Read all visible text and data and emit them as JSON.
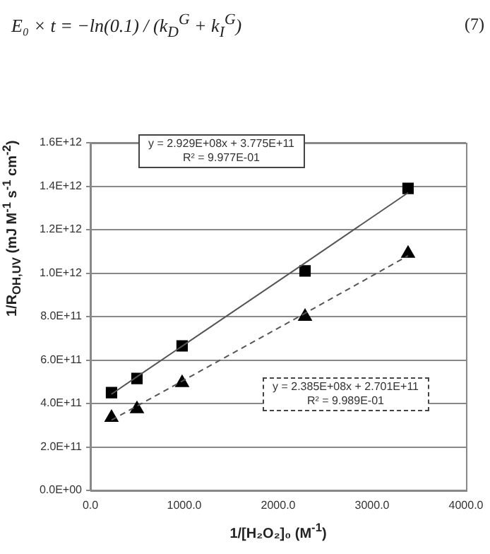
{
  "chart_data": {
    "type": "scatter",
    "annotations": [
      "E₀ × t = −ln(0.1) / (k$_{D}$$^{G}$ + k$_{I}$$^{G}$)",
      "(7)",
      "y = 2.929E+08x + 3.775E+11",
      "R² = 9.977E-01",
      "y = 2.385E+08x + 2.701E+11",
      "R² = 9.989E-01"
    ],
    "xlabel": "1/[H₂O₂]₀ (M$^{-1}$)",
    "ylabel": "1/R$_{OH,UV}$ (mJ M$^{-1}$ s$^{-1}$ cm$^{-2}$)",
    "x": [
      225,
      496,
      977,
      2286,
      3383
    ],
    "series": [
      {
        "type": "scatter",
        "color": "#000000",
        "marker": "square",
        "values": [
          450000000000,
          515000000000,
          665000000000,
          1010000000000,
          1390000000000
        ]
      },
      {
        "type": "scatter",
        "color": "#000000",
        "marker": "triangle",
        "values": [
          335000000000,
          375000000000,
          495000000000,
          800000000000,
          1090000000000
        ]
      },
      {
        "type": "line",
        "color": "#555555",
        "marker": "none",
        "line_style": "solid",
        "values": [
          443000000000,
          523000000000,
          664000000000,
          1047000000000,
          1370000000000
        ]
      },
      {
        "type": "line",
        "color": "#555555",
        "marker": "none",
        "line_style": "dashed",
        "values": [
          324000000000,
          388000000000,
          503000000000,
          815000000000,
          1080000000000
        ]
      }
    ],
    "xlim": [
      0,
      4000
    ],
    "xticks": [
      {
        "value": 0,
        "label": "0.0"
      },
      {
        "value": 1000,
        "label": "1000.0"
      },
      {
        "value": 2000,
        "label": "2000.0"
      },
      {
        "value": 3000,
        "label": "3000.0"
      },
      {
        "value": 4000,
        "label": "4000.0"
      }
    ],
    "ylim": [
      0,
      1600000000000
    ],
    "yticks": [
      {
        "value": 0,
        "label": "0.0E+00"
      },
      {
        "value": 200000000000,
        "label": "2.0E+11"
      },
      {
        "value": 400000000000,
        "label": "4.0E+11"
      },
      {
        "value": 600000000000,
        "label": "6.0E+11"
      },
      {
        "value": 800000000000,
        "label": "8.0E+11"
      },
      {
        "value": 1000000000000,
        "label": "1.0E+12"
      },
      {
        "value": 1200000000000,
        "label": "1.2E+12"
      },
      {
        "value": 1400000000000,
        "label": "1.4E+12"
      },
      {
        "value": 1600000000000,
        "label": "1.6E+12"
      }
    ],
    "grid": "y",
    "legend": false
  }
}
